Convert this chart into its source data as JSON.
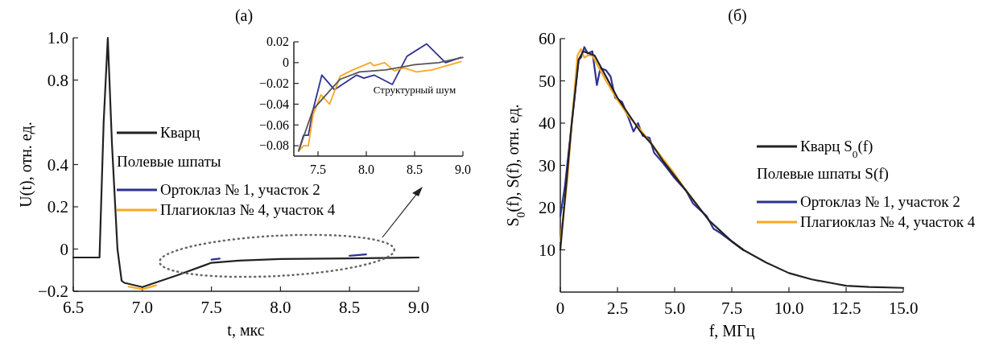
{
  "chart_data": [
    {
      "type": "line",
      "title": "(a)",
      "xlabel": "t, мкс",
      "ylabel": "U(t), отн. ед.",
      "legend": "left",
      "legend_title": "Полевые шпаты",
      "xlim": [
        6.5,
        9.0
      ],
      "ylim": [
        -0.2,
        1.0
      ],
      "xticks": [
        6.5,
        {
          "value": 7,
          "label": "7.0"
        },
        7.5,
        {
          "value": 8,
          "label": "8.0"
        },
        8.5,
        {
          "value": 9,
          "label": "9.0"
        }
      ],
      "yticks": [
        {
          "value": -0.2,
          "label": "−0.2"
        },
        0,
        0.2,
        0.4,
        0.8,
        {
          "value": 1,
          "label": "1.0"
        }
      ],
      "series": [
        {
          "name": "Ортоклаз № 1, участок 2",
          "color": "#2e3192",
          "x": [
            7.5,
            7.56,
            8.0,
            8.5,
            8.62
          ],
          "values": [
            -0.05,
            -0.045,
            null,
            -0.032,
            -0.025
          ]
        },
        {
          "name": "Плагиоклаз № 4, участок 4",
          "color": "#f7a823",
          "x": [
            6.9,
            7.0,
            7.1
          ],
          "values": [
            -0.178,
            -0.19,
            -0.172
          ]
        },
        {
          "name": "Кварц",
          "color": "#222222",
          "x": [
            6.5,
            6.69,
            6.72,
            6.75,
            6.78,
            6.82,
            6.85,
            6.87,
            7.0,
            7.25,
            7.5,
            7.7,
            8.0,
            8.5,
            9.0
          ],
          "values": [
            -0.04,
            -0.04,
            0.6,
            1.0,
            0.5,
            0.0,
            -0.15,
            -0.16,
            -0.18,
            -0.125,
            -0.065,
            -0.055,
            -0.047,
            -0.044,
            -0.04
          ]
        }
      ]
    },
    {
      "type": "line",
      "annotations": [
        "Структурный шум"
      ],
      "xlim": [
        7.25,
        9.0
      ],
      "ylim": [
        -0.09,
        0.02
      ],
      "xticks": [
        7.5,
        {
          "value": 8,
          "label": "8.0"
        },
        8.5,
        {
          "value": 9,
          "label": "9.0"
        }
      ],
      "yticks": [
        {
          "value": -0.08,
          "label": "−0.08"
        },
        {
          "value": -0.06,
          "label": "−0.06"
        },
        {
          "value": -0.04,
          "label": "−0.04"
        },
        {
          "value": -0.02,
          "label": "−0.02"
        },
        0,
        0.02
      ],
      "series": [
        {
          "color": "#2e3192",
          "x": [
            7.3,
            7.35,
            7.4,
            7.45,
            7.54,
            7.67,
            7.9,
            7.975,
            8.08,
            8.27,
            8.42,
            8.625,
            8.82,
            8.98
          ],
          "values": [
            -0.085,
            -0.07,
            -0.07,
            -0.045,
            -0.012,
            -0.026,
            -0.012,
            -0.015,
            -0.012,
            -0.021,
            0.006,
            0.018,
            0,
            0.005
          ]
        },
        {
          "color": "#f7a823",
          "x": [
            7.3,
            7.35,
            7.4,
            7.45,
            7.53,
            7.62,
            7.73,
            7.86,
            8.04,
            8.08,
            8.19,
            8.29,
            8.39,
            8.52,
            8.68,
            8.98
          ],
          "values": [
            -0.085,
            -0.08,
            -0.08,
            -0.05,
            -0.031,
            -0.04,
            -0.013,
            -0.007,
            0,
            -0.003,
            0,
            -0.008,
            -0.005,
            -0.009,
            -0.007,
            0.001
          ]
        },
        {
          "color": "#555555",
          "x": [
            7.3,
            7.45,
            7.65,
            7.73,
            7.93,
            8.2,
            8.5,
            8.75,
            9.0
          ],
          "values": [
            -0.085,
            -0.045,
            -0.024,
            -0.016,
            -0.009,
            -0.007,
            -0.002,
            0,
            0.005
          ]
        }
      ]
    },
    {
      "type": "line",
      "title": "(б)",
      "xlabel": "f, МГц",
      "ylabel": "S$_{0}$(f), S(f), отн. ед.",
      "legend": "right",
      "legend_title": "Полевые шпаты S(f)",
      "xlim": [
        0,
        15
      ],
      "ylim": [
        0,
        60
      ],
      "xticks": [
        0,
        2.5,
        {
          "value": 5,
          "label": "5.0"
        },
        7.5,
        {
          "value": 10,
          "label": "10.0"
        },
        12.5,
        {
          "value": 15,
          "label": "15.0"
        }
      ],
      "yticks": [
        10,
        20,
        30,
        40,
        50,
        60
      ],
      "series": [
        {
          "name": "Ортоклаз № 1, участок 2",
          "color": "#2e3192",
          "x": [
            0,
            0.2,
            0.5,
            0.8,
            0.9,
            1.05,
            1.2,
            1.4,
            1.6,
            1.75,
            2.0,
            2.2,
            2.4,
            2.7,
            3.0,
            3.2,
            3.4,
            3.6,
            3.9,
            4.1,
            4.5,
            5.0,
            5.5,
            5.8,
            6.1,
            6.4,
            6.7,
            7.0,
            7.5,
            8
          ],
          "values": [
            18,
            25,
            40,
            55,
            55.5,
            58,
            56.5,
            57,
            49,
            53,
            52.5,
            51,
            46,
            45,
            41,
            38,
            40,
            37,
            36.5,
            33,
            30.5,
            27,
            24,
            21,
            19.5,
            18,
            15,
            14,
            12,
            10
          ]
        },
        {
          "name": "Плагиоклаз № 4, участок 4",
          "color": "#f7a823",
          "x": [
            0,
            0.3,
            0.5,
            0.75,
            0.9,
            1.05,
            1.2,
            1.4,
            1.7,
            2.0,
            2.5,
            3.0,
            3.5,
            4.0,
            4.5,
            5.0,
            5.5,
            6.0
          ],
          "values": [
            12,
            26,
            40,
            56,
            57.5,
            55.5,
            56,
            56,
            53,
            50,
            45.5,
            41.5,
            38.5,
            35,
            31.5,
            28,
            24,
            20.5
          ]
        },
        {
          "name": "Кварц S$_{0}$(f)",
          "color": "#222222",
          "x": [
            0,
            0.25,
            0.5,
            0.8,
            1.0,
            1.5,
            2.0,
            2.5,
            3.0,
            3.5,
            4.0,
            4.5,
            5.0,
            5.5,
            6.0,
            6.5,
            7.0,
            7.5,
            8.0,
            9.0,
            10.0,
            11,
            12,
            12.5,
            13.5,
            15
          ],
          "values": [
            10,
            25,
            40,
            55,
            57,
            56,
            51,
            46,
            42,
            38,
            35,
            31,
            27.5,
            24,
            20.5,
            17,
            14.5,
            12,
            10,
            7,
            4.5,
            3,
            2,
            1.5,
            1.2,
            1.0
          ]
        }
      ]
    }
  ]
}
